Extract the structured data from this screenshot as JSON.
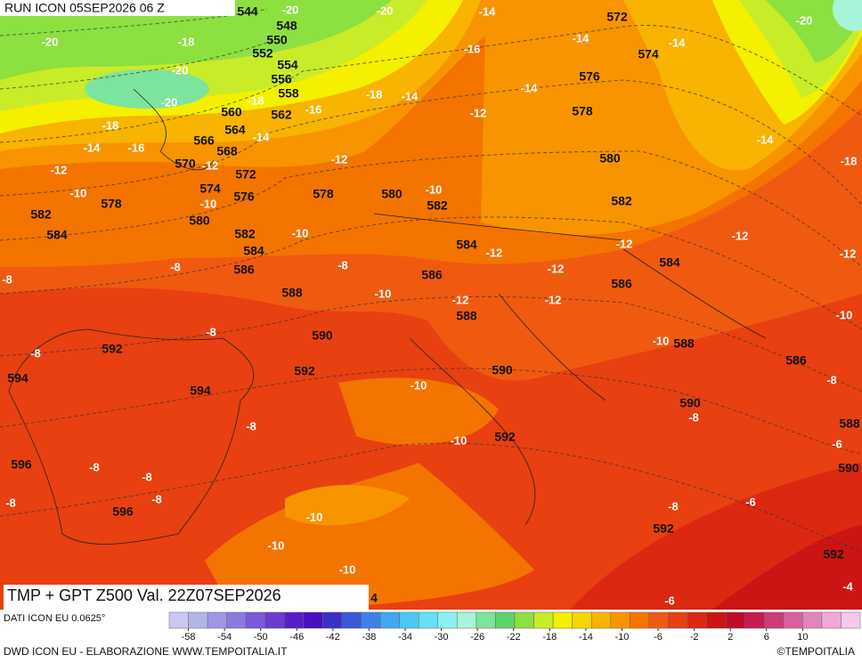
{
  "header": {
    "run": "RUN ICON 05SEP2026 06 Z"
  },
  "map": {
    "title": "TMP + GPT Z500 Val. 22Z07SEP2026",
    "labels": [
      "544",
      "-20",
      "548",
      "-20",
      "-14",
      "572",
      "-20",
      "-20",
      "-18",
      "550",
      "-16",
      "-14",
      "-14",
      "574",
      "-20",
      "552",
      "554",
      "556",
      "576",
      "-14",
      "558",
      "-18",
      "-14",
      "-20",
      "-18",
      "-16",
      "560",
      "562",
      "-12",
      "578",
      "-18",
      "564",
      "-14",
      "566",
      "-14",
      "-16",
      "568",
      "-14",
      "570",
      "-12",
      "-12",
      "580",
      "-18",
      "-12",
      "572",
      "574",
      "-10",
      "578",
      "-10",
      "576",
      "578",
      "580",
      "-10",
      "582",
      "582",
      "582",
      "580",
      "584",
      "582",
      "-10",
      "-12",
      "-12",
      "584",
      "584",
      "-12",
      "-12",
      "-8",
      "-8",
      "584",
      "586",
      "-12",
      "-8",
      "586",
      "588",
      "-10",
      "-12",
      "-12",
      "586",
      "588",
      "-10",
      "-8",
      "590",
      "-10",
      "588",
      "592",
      "-8",
      "586",
      "592",
      "590",
      "594",
      "-8",
      "-10",
      "594",
      "590",
      "-8",
      "-8",
      "588",
      "592",
      "-10",
      "-6",
      "-8",
      "596",
      "-8",
      "590",
      "-8",
      "-8",
      "596",
      "-6",
      "-8",
      "-10",
      "592",
      "-10",
      "592",
      "-10",
      "-6",
      "-4",
      "4"
    ]
  },
  "footer": {
    "data_source": "DATI ICON EU 0.0625°",
    "credit": "DWD ICON EU - ELABORAZIONE WWW.TEMPOITALIA.IT",
    "brand": "©TEMPOITALIA",
    "colorbar": {
      "ticks": [
        -58,
        -54,
        -50,
        -46,
        -42,
        -38,
        -34,
        -30,
        -26,
        -22,
        -18,
        -14,
        -10,
        -6,
        -2,
        2,
        6,
        10
      ],
      "colors": [
        "#c8c8f0",
        "#b4b4ec",
        "#a096e6",
        "#8c78e0",
        "#7a5ad8",
        "#6a3cd0",
        "#5a1ec8",
        "#4a10c0",
        "#3a30c8",
        "#3a5ad8",
        "#3c82e6",
        "#40a8f0",
        "#4cc8f4",
        "#66e0f4",
        "#8cf0f0",
        "#a8f4d8",
        "#7ce49c",
        "#5cd46c",
        "#8ce040",
        "#c8ec28",
        "#f4f000",
        "#f8d400",
        "#f8b400",
        "#f89400",
        "#f47400",
        "#f05a10",
        "#e84010",
        "#dc2810",
        "#cc1414",
        "#c00c28",
        "#c41c50",
        "#cc3c78",
        "#d8609c",
        "#e484bc",
        "#f0a8d8",
        "#f8c8ec"
      ]
    }
  }
}
